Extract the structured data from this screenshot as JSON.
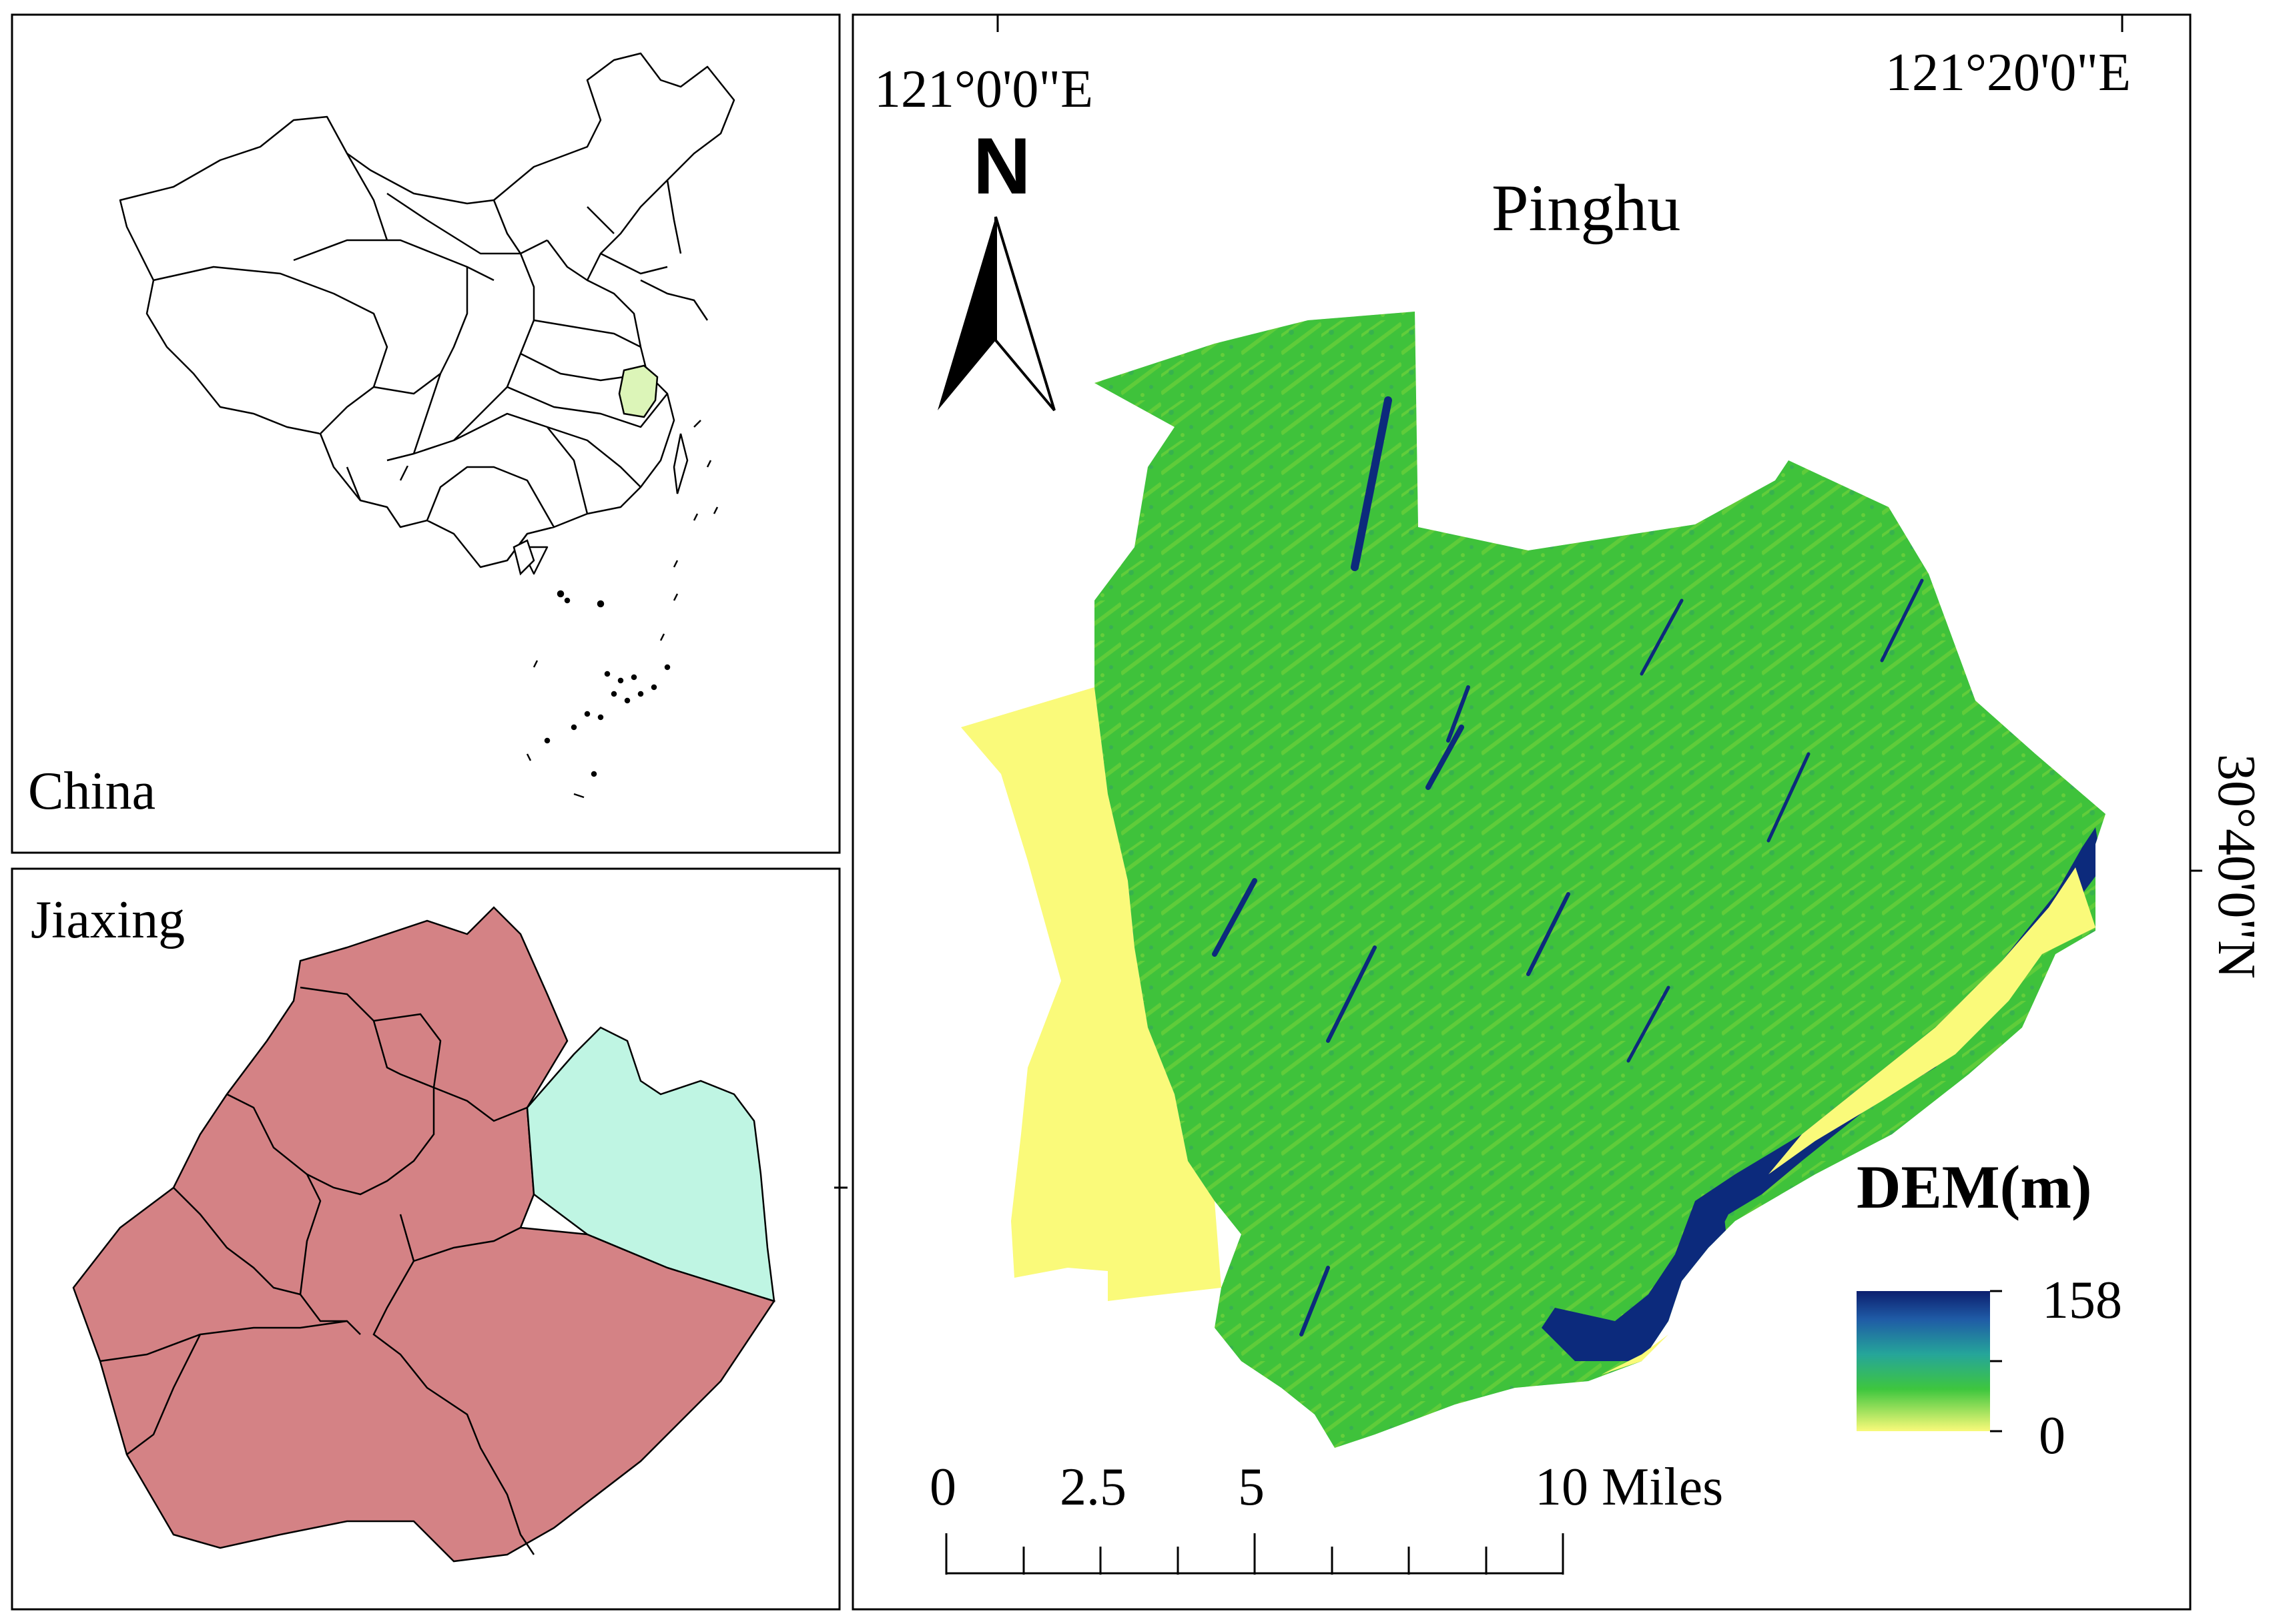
{
  "china_panel": {
    "label": "China"
  },
  "jiaxing_panel": {
    "label": "Jiaxing"
  },
  "main_map": {
    "title": "Pinghu",
    "north_arrow": "N",
    "graticule": {
      "lon_1": "121°0'0\"E",
      "lon_2": "121°20'0\"E",
      "lat_1": "30°40'0\"N"
    },
    "legend": {
      "title": "DEM(m)",
      "max_label": "158",
      "min_label": "0",
      "max_value": 158,
      "min_value": 0
    },
    "scale_bar": {
      "labels": [
        "0",
        "2.5",
        "5",
        "10 Miles"
      ]
    }
  },
  "colors": {
    "jiaxing_region": "#d48285",
    "pinghu_region": "#bff5e3",
    "zhejiang_highlight": "#dcf5b8",
    "dem_low": "#fafa7a",
    "dem_mid": "#3ec63e",
    "dem_high": "#0c2a7c"
  }
}
